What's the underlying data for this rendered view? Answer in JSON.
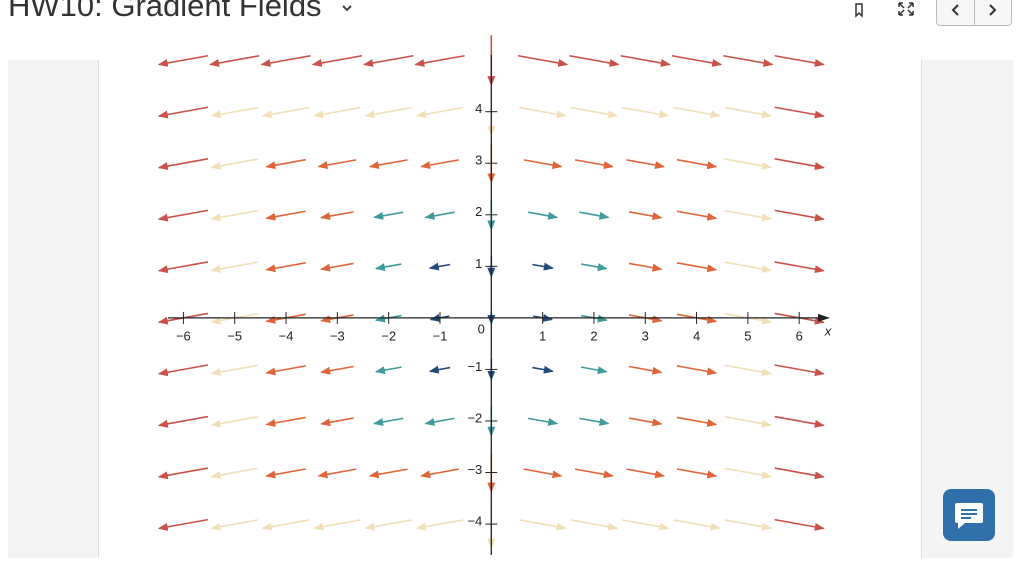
{
  "header": {
    "title": "HW10: Gradient Fields"
  },
  "chart_data": {
    "type": "vector-field",
    "xlabel": "x",
    "xlim": [
      -6.3,
      6.6
    ],
    "ylim": [
      -4.6,
      5.1
    ],
    "xticks": [
      {
        "value": -6,
        "label": "−6"
      },
      {
        "value": -5,
        "label": "−5"
      },
      {
        "value": -4,
        "label": "−4"
      },
      {
        "value": -3,
        "label": "−3"
      },
      {
        "value": -2,
        "label": "−2"
      },
      {
        "value": -1,
        "label": "−1"
      },
      1,
      2,
      3,
      4,
      5,
      6
    ],
    "yticks": [
      4,
      3,
      2,
      1,
      {
        "value": -1,
        "label": "−1"
      },
      {
        "value": -2,
        "label": "−2"
      },
      {
        "value": -3,
        "label": "−3"
      },
      {
        "value": -4,
        "label": "−4"
      }
    ],
    "origin_label": "0"
  }
}
